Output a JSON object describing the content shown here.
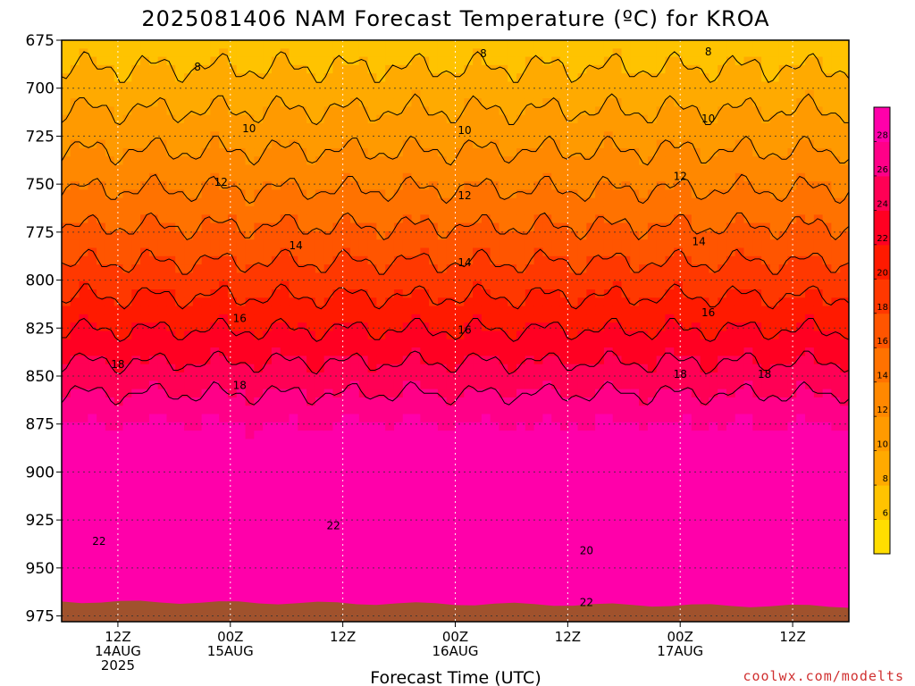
{
  "chart_data": {
    "type": "heatmap",
    "title": "2025081406 NAM Forecast Temperature (ºC) for KROA",
    "xlabel": "Forecast Time (UTC)",
    "ylabel": "",
    "y_axis": {
      "ticks": [
        675,
        700,
        725,
        750,
        775,
        800,
        825,
        850,
        875,
        900,
        925,
        950,
        975
      ],
      "range": [
        675,
        978
      ],
      "inverted": true
    },
    "x_axis": {
      "range_hours": [
        6,
        90
      ],
      "ticks": [
        {
          "hour": 12,
          "lines": [
            "12Z",
            "14AUG",
            "2025"
          ]
        },
        {
          "hour": 24,
          "lines": [
            "00Z",
            "15AUG"
          ]
        },
        {
          "hour": 36,
          "lines": [
            "12Z"
          ]
        },
        {
          "hour": 48,
          "lines": [
            "00Z",
            "16AUG"
          ]
        },
        {
          "hour": 60,
          "lines": [
            "12Z"
          ]
        },
        {
          "hour": 72,
          "lines": [
            "00Z",
            "17AUG"
          ]
        },
        {
          "hour": 84,
          "lines": [
            "12Z"
          ]
        }
      ]
    },
    "grid": true,
    "colorbar": {
      "position": "right",
      "min": 4,
      "max": 30,
      "step": 2,
      "labels": [
        6,
        8,
        10,
        12,
        14,
        16,
        18,
        20,
        22,
        24,
        26,
        28
      ],
      "colors": [
        "#ffdd00",
        "#ffc300",
        "#ffaa00",
        "#ff9a00",
        "#ff8800",
        "#ff7200",
        "#ff5500",
        "#ff3800",
        "#ff1a00",
        "#ff0022",
        "#ff0055",
        "#ff0088",
        "#ff00aa"
      ]
    },
    "surface_color": "#a0522d",
    "contour_labels": [
      {
        "text": "8",
        "hour": 20.5,
        "p": 689
      },
      {
        "text": "8",
        "hour": 51,
        "p": 682
      },
      {
        "text": "8",
        "hour": 75,
        "p": 681
      },
      {
        "text": "10",
        "hour": 26,
        "p": 721
      },
      {
        "text": "10",
        "hour": 49,
        "p": 722
      },
      {
        "text": "10",
        "hour": 75,
        "p": 716
      },
      {
        "text": "12",
        "hour": 23,
        "p": 749
      },
      {
        "text": "12",
        "hour": 49,
        "p": 756
      },
      {
        "text": "12",
        "hour": 72,
        "p": 746
      },
      {
        "text": "14",
        "hour": 31,
        "p": 782
      },
      {
        "text": "14",
        "hour": 49,
        "p": 791
      },
      {
        "text": "14",
        "hour": 74,
        "p": 780
      },
      {
        "text": "16",
        "hour": 25,
        "p": 820
      },
      {
        "text": "16",
        "hour": 49,
        "p": 826
      },
      {
        "text": "16",
        "hour": 75,
        "p": 817
      },
      {
        "text": "18",
        "hour": 12,
        "p": 844
      },
      {
        "text": "18",
        "hour": 25,
        "p": 855
      },
      {
        "text": "18",
        "hour": 72,
        "p": 849
      },
      {
        "text": "18",
        "hour": 81,
        "p": 849
      },
      {
        "text": "22",
        "hour": 10,
        "p": 936
      },
      {
        "text": "22",
        "hour": 35,
        "p": 928
      },
      {
        "text": "20",
        "hour": 62,
        "p": 941
      },
      {
        "text": "22",
        "hour": 62,
        "p": 968
      }
    ]
  },
  "credit": "coolwx.com/modelts"
}
